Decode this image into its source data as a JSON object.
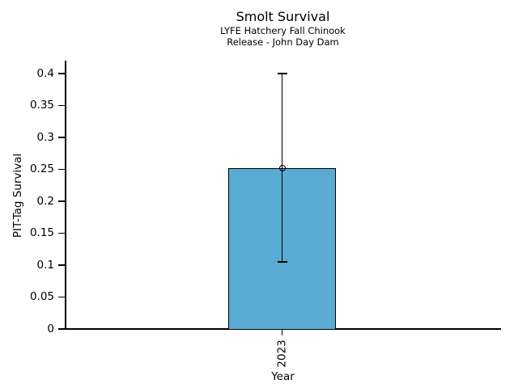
{
  "chart_data": {
    "type": "bar",
    "title": "Smolt Survival",
    "subtitle": [
      "LYFE Hatchery Fall Chinook",
      "Release - John Day Dam"
    ],
    "xlabel": "Year",
    "ylabel": "PIT-Tag Survival",
    "categories": [
      "2023"
    ],
    "values": [
      0.252
    ],
    "error_low": [
      0.105
    ],
    "error_high": [
      0.4
    ],
    "yticks": [
      0,
      0.05,
      0.1,
      0.15,
      0.2,
      0.25,
      0.3,
      0.35,
      0.4
    ],
    "ytick_labels": [
      "0",
      "0.05",
      "0.1",
      "0.15",
      "0.2",
      "0.25",
      "0.3",
      "0.35",
      "0.4"
    ],
    "ylim": [
      0,
      0.42
    ],
    "grid": false,
    "legend": null,
    "bar_color": "#5AABD4",
    "edge_color": "#000000",
    "text_color": "#000000"
  }
}
